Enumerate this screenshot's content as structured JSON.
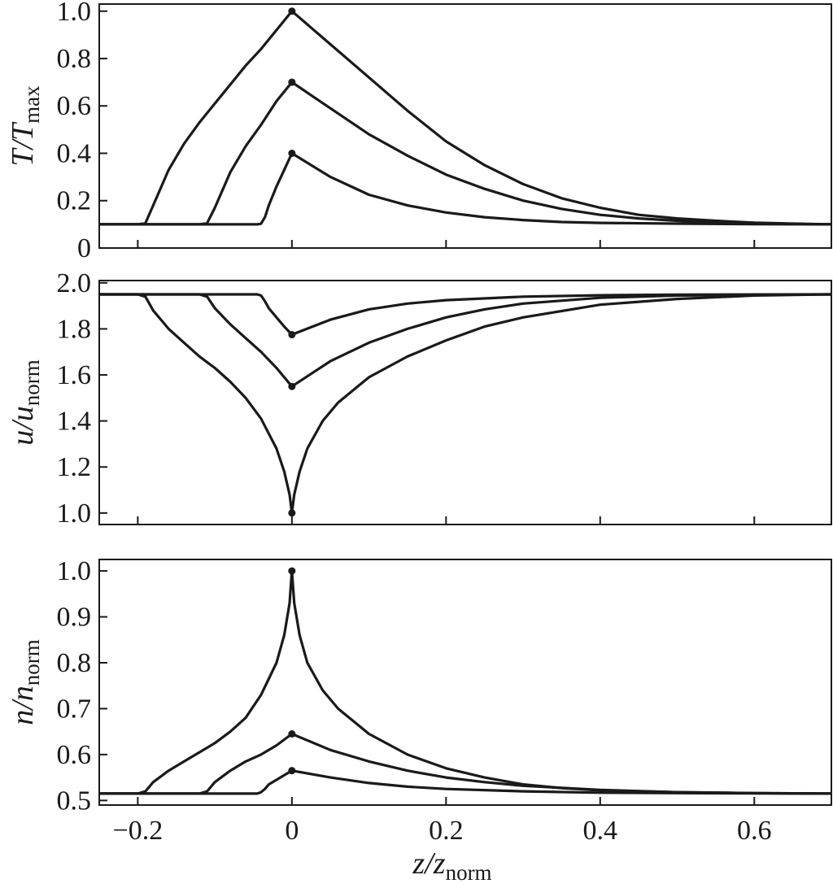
{
  "chart_data": [
    {
      "type": "line",
      "panel": "top",
      "ylabel": {
        "base": "T/T",
        "sub": "max"
      },
      "xlim": [
        -0.25,
        0.7
      ],
      "ylim": [
        0.0,
        1.03
      ],
      "yticks": [
        0,
        0.2,
        0.4,
        0.6,
        0.8,
        1.0
      ],
      "ytick_labels": [
        "0",
        "0.2",
        "0.4",
        "0.6",
        "0.8",
        "1.0"
      ],
      "xticks": [
        -0.2,
        0,
        0.2,
        0.4,
        0.6
      ],
      "xtick_labels": [],
      "series": [
        {
          "x": [
            -0.25,
            -0.2,
            -0.19,
            -0.18,
            -0.16,
            -0.14,
            -0.12,
            -0.1,
            -0.08,
            -0.06,
            -0.04,
            -0.02,
            0,
            0.05,
            0.1,
            0.15,
            0.2,
            0.25,
            0.3,
            0.35,
            0.4,
            0.45,
            0.5,
            0.55,
            0.6,
            0.65,
            0.7
          ],
          "y": [
            0.1,
            0.1,
            0.105,
            0.18,
            0.33,
            0.44,
            0.53,
            0.61,
            0.69,
            0.77,
            0.84,
            0.92,
            1.0,
            0.86,
            0.72,
            0.58,
            0.45,
            0.35,
            0.27,
            0.21,
            0.17,
            0.14,
            0.125,
            0.115,
            0.107,
            0.103,
            0.1
          ]
        },
        {
          "x": [
            -0.25,
            -0.12,
            -0.11,
            -0.1,
            -0.08,
            -0.06,
            -0.04,
            -0.02,
            0,
            0.05,
            0.1,
            0.15,
            0.2,
            0.25,
            0.3,
            0.35,
            0.4,
            0.45,
            0.5,
            0.55,
            0.6,
            0.65,
            0.7
          ],
          "y": [
            0.1,
            0.1,
            0.105,
            0.17,
            0.32,
            0.43,
            0.52,
            0.62,
            0.7,
            0.59,
            0.48,
            0.39,
            0.31,
            0.25,
            0.2,
            0.165,
            0.14,
            0.125,
            0.115,
            0.108,
            0.104,
            0.102,
            0.1
          ]
        },
        {
          "x": [
            -0.25,
            -0.045,
            -0.04,
            -0.035,
            -0.03,
            -0.02,
            -0.01,
            0,
            0.05,
            0.1,
            0.15,
            0.2,
            0.25,
            0.3,
            0.35,
            0.4,
            0.5,
            0.6,
            0.7
          ],
          "y": [
            0.1,
            0.1,
            0.103,
            0.13,
            0.18,
            0.26,
            0.33,
            0.4,
            0.3,
            0.225,
            0.18,
            0.15,
            0.13,
            0.118,
            0.11,
            0.106,
            0.103,
            0.101,
            0.1
          ]
        }
      ],
      "markers": [
        [
          0,
          1.0
        ],
        [
          0,
          0.7
        ],
        [
          0,
          0.4
        ]
      ]
    },
    {
      "type": "line",
      "panel": "middle",
      "ylabel": {
        "base": "u/u",
        "sub": "norm"
      },
      "xlim": [
        -0.25,
        0.7
      ],
      "ylim": [
        0.95,
        2.01
      ],
      "yticks": [
        1.0,
        1.2,
        1.4,
        1.6,
        1.8,
        2.0
      ],
      "ytick_labels": [
        "1.0",
        "1.2",
        "1.4",
        "1.6",
        "1.8",
        "2.0"
      ],
      "xticks": [
        -0.2,
        0,
        0.2,
        0.4,
        0.6
      ],
      "xtick_labels": [],
      "series": [
        {
          "x": [
            -0.25,
            -0.2,
            -0.19,
            -0.18,
            -0.16,
            -0.14,
            -0.12,
            -0.1,
            -0.08,
            -0.06,
            -0.04,
            -0.02,
            -0.01,
            -0.003,
            0,
            0.003,
            0.01,
            0.02,
            0.04,
            0.06,
            0.1,
            0.15,
            0.2,
            0.25,
            0.3,
            0.4,
            0.5,
            0.6,
            0.7
          ],
          "y": [
            1.95,
            1.95,
            1.94,
            1.88,
            1.8,
            1.74,
            1.68,
            1.63,
            1.57,
            1.5,
            1.41,
            1.28,
            1.18,
            1.08,
            1.0,
            1.08,
            1.18,
            1.28,
            1.4,
            1.48,
            1.59,
            1.68,
            1.75,
            1.81,
            1.85,
            1.905,
            1.93,
            1.945,
            1.95
          ]
        },
        {
          "x": [
            -0.25,
            -0.12,
            -0.11,
            -0.1,
            -0.08,
            -0.06,
            -0.04,
            -0.02,
            0,
            0.05,
            0.1,
            0.15,
            0.2,
            0.25,
            0.3,
            0.4,
            0.5,
            0.6,
            0.7
          ],
          "y": [
            1.95,
            1.95,
            1.94,
            1.89,
            1.82,
            1.76,
            1.7,
            1.63,
            1.55,
            1.66,
            1.74,
            1.8,
            1.85,
            1.885,
            1.91,
            1.935,
            1.945,
            1.948,
            1.95
          ]
        },
        {
          "x": [
            -0.25,
            -0.045,
            -0.04,
            -0.035,
            -0.03,
            -0.02,
            -0.01,
            0,
            0.05,
            0.1,
            0.15,
            0.2,
            0.3,
            0.4,
            0.5,
            0.7
          ],
          "y": [
            1.95,
            1.95,
            1.945,
            1.92,
            1.89,
            1.85,
            1.81,
            1.775,
            1.84,
            1.885,
            1.91,
            1.925,
            1.94,
            1.946,
            1.949,
            1.95
          ]
        }
      ],
      "markers": [
        [
          0,
          1.775
        ],
        [
          0,
          1.55
        ],
        [
          0,
          1.0
        ]
      ]
    },
    {
      "type": "line",
      "panel": "bottom",
      "ylabel": {
        "base": "n/n",
        "sub": "norm"
      },
      "xlim": [
        -0.25,
        0.7
      ],
      "ylim": [
        0.49,
        1.025
      ],
      "yticks": [
        0.5,
        0.6,
        0.7,
        0.8,
        0.9,
        1.0
      ],
      "ytick_labels": [
        "0.5",
        "0.6",
        "0.7",
        "0.8",
        "0.9",
        "1.0"
      ],
      "xticks": [
        -0.2,
        0,
        0.2,
        0.4,
        0.6
      ],
      "xtick_labels": [
        "−0.2",
        "0",
        "0.2",
        "0.4",
        "0.6"
      ],
      "xlabel": {
        "base": "z/z",
        "sub": "norm"
      },
      "series": [
        {
          "x": [
            -0.25,
            -0.2,
            -0.19,
            -0.18,
            -0.16,
            -0.14,
            -0.12,
            -0.1,
            -0.08,
            -0.06,
            -0.04,
            -0.02,
            -0.01,
            -0.003,
            0,
            0.003,
            0.01,
            0.02,
            0.04,
            0.06,
            0.1,
            0.15,
            0.2,
            0.25,
            0.3,
            0.35,
            0.4,
            0.5,
            0.6,
            0.7
          ],
          "y": [
            0.515,
            0.515,
            0.52,
            0.54,
            0.565,
            0.585,
            0.605,
            0.625,
            0.65,
            0.68,
            0.73,
            0.8,
            0.86,
            0.93,
            1.0,
            0.93,
            0.86,
            0.8,
            0.74,
            0.7,
            0.645,
            0.6,
            0.57,
            0.55,
            0.535,
            0.527,
            0.522,
            0.518,
            0.516,
            0.515
          ]
        },
        {
          "x": [
            -0.25,
            -0.12,
            -0.11,
            -0.1,
            -0.08,
            -0.06,
            -0.04,
            -0.02,
            0,
            0.05,
            0.1,
            0.15,
            0.2,
            0.25,
            0.3,
            0.4,
            0.5,
            0.6,
            0.7
          ],
          "y": [
            0.515,
            0.515,
            0.52,
            0.54,
            0.565,
            0.585,
            0.6,
            0.62,
            0.645,
            0.61,
            0.585,
            0.565,
            0.55,
            0.54,
            0.532,
            0.523,
            0.518,
            0.516,
            0.515
          ]
        },
        {
          "x": [
            -0.25,
            -0.045,
            -0.04,
            -0.035,
            -0.03,
            -0.02,
            -0.01,
            0,
            0.05,
            0.1,
            0.15,
            0.2,
            0.3,
            0.4,
            0.5,
            0.7
          ],
          "y": [
            0.515,
            0.515,
            0.518,
            0.525,
            0.535,
            0.545,
            0.555,
            0.565,
            0.55,
            0.538,
            0.53,
            0.525,
            0.52,
            0.517,
            0.516,
            0.515
          ]
        }
      ],
      "markers": [
        [
          0,
          1.0
        ],
        [
          0,
          0.645
        ],
        [
          0,
          0.565
        ]
      ]
    }
  ]
}
